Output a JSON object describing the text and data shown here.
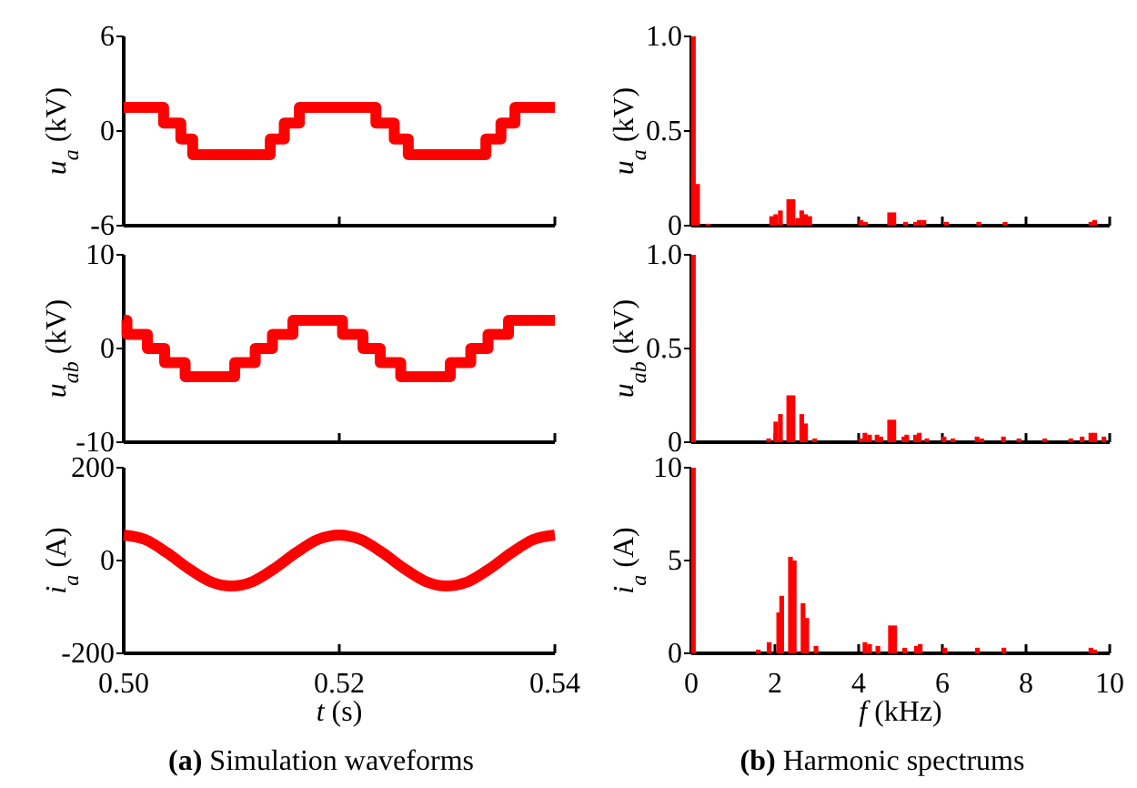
{
  "chart_data": [
    {
      "type": "step",
      "ylabel": "u$_{a}$ (kV)",
      "x": [
        0.5,
        0.5037,
        0.5053,
        0.5064,
        0.5136,
        0.5149,
        0.5163,
        0.5234,
        0.5251,
        0.5264,
        0.5336,
        0.535,
        0.5363,
        0.54
      ],
      "values": [
        1.5,
        0.5,
        -0.5,
        -1.5,
        -0.5,
        0.5,
        1.5,
        0.5,
        -0.5,
        -1.5,
        -0.5,
        0.5,
        1.5,
        1.5
      ],
      "color": "#ff0000",
      "xlim": [
        0.5,
        0.54
      ],
      "xticks": [
        0.5,
        0.52,
        0.54
      ],
      "ylim": [
        -6,
        6
      ],
      "yticks": [
        -6,
        0,
        6
      ],
      "tick_labels": "y"
    },
    {
      "type": "bar",
      "ylabel": "u$_{a}$ (kV)",
      "x": [
        0.05,
        0.15,
        0.4,
        1.92,
        2.02,
        2.13,
        2.33,
        2.43,
        2.54,
        2.64,
        2.73,
        2.83,
        4.05,
        4.16,
        4.74,
        4.84,
        5.12,
        5.36,
        5.45,
        5.56,
        6.1,
        6.87,
        7.5,
        9.55,
        9.64
      ],
      "values": [
        1.0,
        0.22,
        0.01,
        0.05,
        0.06,
        0.08,
        0.14,
        0.14,
        0.04,
        0.08,
        0.06,
        0.05,
        0.03,
        0.02,
        0.07,
        0.07,
        0.02,
        0.02,
        0.03,
        0.03,
        0.02,
        0.02,
        0.02,
        0.02,
        0.03
      ],
      "color": "#ff0000",
      "xlim": [
        0,
        10
      ],
      "xticks": [
        0,
        2,
        4,
        6,
        8,
        10
      ],
      "ylim": [
        0,
        1
      ],
      "yticks": [
        0,
        0.5,
        {
          "value": 1,
          "label": "1.0"
        }
      ],
      "tick_labels": "y"
    },
    {
      "type": "step",
      "ylabel": "u$_{ab}$ (kV)",
      "x": [
        0.5,
        0.5003,
        0.5022,
        0.5038,
        0.5057,
        0.5103,
        0.5122,
        0.5138,
        0.5157,
        0.5203,
        0.5222,
        0.5238,
        0.5257,
        0.5303,
        0.5322,
        0.5338,
        0.5357,
        0.54
      ],
      "values": [
        3,
        1.5,
        0,
        -1.5,
        -3,
        -1.5,
        0,
        1.5,
        3,
        1.5,
        0,
        -1.5,
        -3,
        -1.5,
        0,
        1.5,
        3,
        3
      ],
      "color": "#ff0000",
      "xlim": [
        0.5,
        0.54
      ],
      "xticks": [
        0.5,
        0.52,
        0.54
      ],
      "ylim": [
        -10,
        10
      ],
      "yticks": [
        -10,
        0,
        10
      ],
      "tick_labels": "y"
    },
    {
      "type": "bar",
      "ylabel": "u$_{ab}$ (kV)",
      "x": [
        0.05,
        1.85,
        2.02,
        2.13,
        2.33,
        2.43,
        2.64,
        2.73,
        2.95,
        4.05,
        4.15,
        4.26,
        4.44,
        4.53,
        4.74,
        4.84,
        5.08,
        5.15,
        5.36,
        5.45,
        5.63,
        6.04,
        6.25,
        6.83,
        6.94,
        7.46,
        7.83,
        8.45,
        9.07,
        9.34,
        9.55,
        9.64,
        9.86
      ],
      "values": [
        1.0,
        0.02,
        0.11,
        0.15,
        0.25,
        0.25,
        0.15,
        0.1,
        0.02,
        0.02,
        0.05,
        0.04,
        0.04,
        0.03,
        0.12,
        0.12,
        0.03,
        0.04,
        0.04,
        0.05,
        0.02,
        0.03,
        0.02,
        0.03,
        0.02,
        0.03,
        0.02,
        0.02,
        0.02,
        0.03,
        0.05,
        0.05,
        0.03
      ],
      "color": "#ff0000",
      "xlim": [
        0,
        10
      ],
      "xticks": [
        0,
        2,
        4,
        6,
        8,
        10
      ],
      "ylim": [
        0,
        1
      ],
      "yticks": [
        0,
        0.5,
        {
          "value": 1,
          "label": "1.0"
        }
      ],
      "tick_labels": "y"
    },
    {
      "type": "line",
      "ylabel": "i$_{a}$ (A)",
      "xlabel": "t (s)",
      "annotations": [
        "(a) Simulation waveforms"
      ],
      "x": [
        0.5,
        0.502,
        0.504,
        0.506,
        0.508,
        0.51,
        0.512,
        0.514,
        0.516,
        0.518,
        0.52,
        0.522,
        0.524,
        0.526,
        0.528,
        0.53,
        0.532,
        0.534,
        0.536,
        0.538,
        0.54
      ],
      "values": [
        55,
        45,
        17,
        -17,
        -45,
        -55,
        -45,
        -17,
        17,
        45,
        55,
        45,
        17,
        -17,
        -45,
        -55,
        -45,
        -17,
        17,
        45,
        55
      ],
      "color": "#ff0000",
      "xlim": [
        0.5,
        0.54
      ],
      "xticks": [
        {
          "value": 0.5,
          "label": "0.50"
        },
        {
          "value": 0.52,
          "label": "0.52"
        },
        {
          "value": 0.54,
          "label": "0.54"
        }
      ],
      "ylim": [
        -200,
        200
      ],
      "yticks": [
        -200,
        0,
        200
      ]
    },
    {
      "type": "bar",
      "ylabel": "i$_{a}$ (A)",
      "xlabel": "f (kHz)",
      "annotations": [
        "(b) Harmonic spectrums"
      ],
      "x": [
        0.05,
        1.6,
        1.86,
        2.09,
        2.16,
        2.37,
        2.46,
        2.67,
        2.76,
        2.98,
        4.15,
        4.26,
        4.46,
        4.76,
        4.86,
        5.1,
        5.38,
        5.47,
        6.06,
        6.84,
        7.47,
        9.55,
        9.64
      ],
      "values": [
        10,
        0.2,
        0.6,
        2.2,
        3.1,
        5.2,
        5.0,
        2.7,
        1.9,
        0.4,
        0.6,
        0.5,
        0.4,
        1.5,
        1.5,
        0.3,
        0.4,
        0.5,
        0.3,
        0.3,
        0.3,
        0.3,
        0.2
      ],
      "color": "#ff0000",
      "xlim": [
        0,
        10
      ],
      "xticks": [
        0,
        2,
        4,
        6,
        8,
        10
      ],
      "ylim": [
        0,
        10
      ],
      "yticks": [
        0,
        5,
        10
      ]
    }
  ]
}
